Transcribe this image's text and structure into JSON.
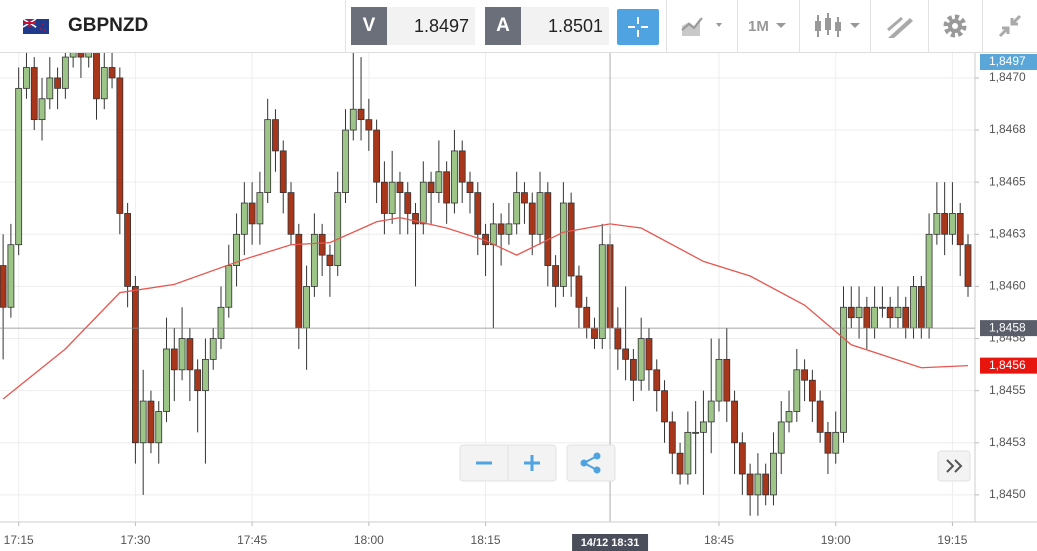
{
  "toolbar": {
    "symbol": "GBPNZD",
    "bid": {
      "label": "V",
      "price": "1.8497"
    },
    "ask": {
      "label": "A",
      "price": "1.8501"
    },
    "timeframe": "1M"
  },
  "chart_data": {
    "type": "candlestick",
    "grid": true,
    "up_color": "#9cc587",
    "down_color": "#a8361b",
    "line_color": "#e8564f",
    "xlim": [
      1032.6,
      1157.9
    ],
    "ylim": [
      1.84487,
      1.84711
    ],
    "xticks": [
      {
        "value": 1035,
        "label": "17:15"
      },
      {
        "value": 1050,
        "label": "17:30"
      },
      {
        "value": 1065,
        "label": "17:45"
      },
      {
        "value": 1080,
        "label": "18:00"
      },
      {
        "value": 1095,
        "label": "18:15"
      },
      {
        "value": 1125,
        "label": "18:45"
      },
      {
        "value": 1140,
        "label": "19:00"
      },
      {
        "value": 1155,
        "label": "19:15"
      }
    ],
    "yticks": [
      {
        "value": 1.845,
        "label": "1,8450"
      },
      {
        "value": 1.84525,
        "label": "1,8453"
      },
      {
        "value": 1.8455,
        "label": "1,8455"
      },
      {
        "value": 1.84575,
        "label": "1,8458"
      },
      {
        "value": 1.846,
        "label": "1,8460"
      },
      {
        "value": 1.84625,
        "label": "1,8463"
      },
      {
        "value": 1.8465,
        "label": "1,8465"
      },
      {
        "value": 1.84675,
        "label": "1,8468"
      },
      {
        "value": 1.847,
        "label": "1,8470"
      }
    ],
    "top_tag": "1,8497",
    "ma_tag": {
      "value": 1.84562,
      "label": "1,8456"
    },
    "crosshair": {
      "x": 1111,
      "x_label": "14/12 18:31",
      "price": {
        "value": 1.8458,
        "label": "1,8458"
      }
    },
    "x": [
      1033,
      1034,
      1035,
      1036,
      1037,
      1038,
      1039,
      1040,
      1041,
      1042,
      1043,
      1044,
      1045,
      1046,
      1047,
      1048,
      1049,
      1050,
      1051,
      1052,
      1053,
      1054,
      1055,
      1056,
      1057,
      1058,
      1059,
      1060,
      1061,
      1062,
      1063,
      1064,
      1065,
      1066,
      1067,
      1068,
      1069,
      1070,
      1071,
      1072,
      1073,
      1074,
      1075,
      1076,
      1077,
      1078,
      1079,
      1080,
      1081,
      1082,
      1083,
      1084,
      1085,
      1086,
      1087,
      1088,
      1089,
      1090,
      1091,
      1092,
      1093,
      1094,
      1095,
      1096,
      1097,
      1098,
      1099,
      1100,
      1101,
      1102,
      1103,
      1104,
      1105,
      1106,
      1107,
      1108,
      1109,
      1110,
      1111,
      1112,
      1113,
      1114,
      1115,
      1116,
      1117,
      1118,
      1119,
      1120,
      1121,
      1122,
      1123,
      1124,
      1125,
      1126,
      1127,
      1128,
      1129,
      1130,
      1131,
      1132,
      1133,
      1134,
      1135,
      1136,
      1137,
      1138,
      1139,
      1140,
      1141,
      1142,
      1143,
      1144,
      1145,
      1146,
      1147,
      1148,
      1149,
      1150,
      1151,
      1152,
      1153,
      1154,
      1155,
      1156,
      1157
    ],
    "ohlc": [
      [
        1.8461,
        1.84625,
        1.84565,
        1.8459
      ],
      [
        1.8459,
        1.8463,
        1.84585,
        1.8462
      ],
      [
        1.8462,
        1.84705,
        1.84615,
        1.84695
      ],
      [
        1.84695,
        1.8472,
        1.8469,
        1.84705
      ],
      [
        1.84705,
        1.8471,
        1.84675,
        1.8468
      ],
      [
        1.8468,
        1.847,
        1.8467,
        1.8469
      ],
      [
        1.8469,
        1.8471,
        1.84685,
        1.847
      ],
      [
        1.847,
        1.84705,
        1.84685,
        1.84695
      ],
      [
        1.84695,
        1.8472,
        1.8469,
        1.8471
      ],
      [
        1.8471,
        1.8473,
        1.84705,
        1.8472
      ],
      [
        1.8472,
        1.84725,
        1.847,
        1.8471
      ],
      [
        1.8471,
        1.8473,
        1.84705,
        1.84715
      ],
      [
        1.84715,
        1.8472,
        1.8468,
        1.8469
      ],
      [
        1.8469,
        1.84715,
        1.84685,
        1.84705
      ],
      [
        1.84705,
        1.84715,
        1.84695,
        1.847
      ],
      [
        1.847,
        1.84705,
        1.84625,
        1.84635
      ],
      [
        1.84635,
        1.8464,
        1.8459,
        1.846
      ],
      [
        1.846,
        1.84605,
        1.84515,
        1.84525
      ],
      [
        1.84525,
        1.8456,
        1.845,
        1.84545
      ],
      [
        1.84545,
        1.8455,
        1.8452,
        1.84525
      ],
      [
        1.84525,
        1.84545,
        1.84515,
        1.8454
      ],
      [
        1.8454,
        1.84585,
        1.84535,
        1.8457
      ],
      [
        1.8457,
        1.8458,
        1.84545,
        1.8456
      ],
      [
        1.8456,
        1.8459,
        1.84555,
        1.84575
      ],
      [
        1.84575,
        1.8458,
        1.84545,
        1.8456
      ],
      [
        1.8456,
        1.84565,
        1.8453,
        1.8455
      ],
      [
        1.8455,
        1.84575,
        1.84515,
        1.84565
      ],
      [
        1.84565,
        1.8458,
        1.8456,
        1.84575
      ],
      [
        1.84575,
        1.846,
        1.8457,
        1.8459
      ],
      [
        1.8459,
        1.8462,
        1.84585,
        1.8461
      ],
      [
        1.8461,
        1.84635,
        1.846,
        1.84625
      ],
      [
        1.84625,
        1.8465,
        1.84615,
        1.8464
      ],
      [
        1.8464,
        1.8465,
        1.8462,
        1.8463
      ],
      [
        1.8463,
        1.84655,
        1.8462,
        1.84645
      ],
      [
        1.84645,
        1.8469,
        1.8464,
        1.8468
      ],
      [
        1.8468,
        1.84685,
        1.84655,
        1.84665
      ],
      [
        1.84665,
        1.8467,
        1.84635,
        1.84645
      ],
      [
        1.84645,
        1.8465,
        1.8462,
        1.84625
      ],
      [
        1.84625,
        1.8463,
        1.8457,
        1.8458
      ],
      [
        1.8458,
        1.8461,
        1.8456,
        1.846
      ],
      [
        1.846,
        1.84635,
        1.84595,
        1.84625
      ],
      [
        1.84625,
        1.8463,
        1.84605,
        1.84615
      ],
      [
        1.84615,
        1.8462,
        1.84595,
        1.8461
      ],
      [
        1.8461,
        1.84655,
        1.84605,
        1.84645
      ],
      [
        1.84645,
        1.84685,
        1.8464,
        1.84675
      ],
      [
        1.84675,
        1.84715,
        1.8467,
        1.84685
      ],
      [
        1.84685,
        1.8471,
        1.8467,
        1.8468
      ],
      [
        1.8468,
        1.8469,
        1.84665,
        1.84675
      ],
      [
        1.84675,
        1.8468,
        1.8464,
        1.8465
      ],
      [
        1.8465,
        1.8466,
        1.84625,
        1.84635
      ],
      [
        1.84635,
        1.84665,
        1.8463,
        1.8465
      ],
      [
        1.8465,
        1.84655,
        1.84625,
        1.84645
      ],
      [
        1.84645,
        1.8465,
        1.84625,
        1.84635
      ],
      [
        1.84635,
        1.8464,
        1.846,
        1.8463
      ],
      [
        1.8463,
        1.8466,
        1.84625,
        1.8465
      ],
      [
        1.8465,
        1.84655,
        1.8463,
        1.84645
      ],
      [
        1.84645,
        1.8467,
        1.8464,
        1.84655
      ],
      [
        1.84655,
        1.8466,
        1.8463,
        1.8464
      ],
      [
        1.8464,
        1.84675,
        1.84635,
        1.84665
      ],
      [
        1.84665,
        1.8467,
        1.8464,
        1.8465
      ],
      [
        1.8465,
        1.84655,
        1.84635,
        1.84645
      ],
      [
        1.84645,
        1.8465,
        1.84615,
        1.84625
      ],
      [
        1.84625,
        1.8463,
        1.84605,
        1.8462
      ],
      [
        1.8462,
        1.8464,
        1.8458,
        1.8463
      ],
      [
        1.8463,
        1.84635,
        1.8461,
        1.84625
      ],
      [
        1.84625,
        1.8464,
        1.8462,
        1.8463
      ],
      [
        1.8463,
        1.84655,
        1.84625,
        1.84645
      ],
      [
        1.84645,
        1.8465,
        1.8463,
        1.8464
      ],
      [
        1.8464,
        1.84645,
        1.84615,
        1.84625
      ],
      [
        1.84625,
        1.84655,
        1.8462,
        1.84645
      ],
      [
        1.84645,
        1.8465,
        1.846,
        1.8461
      ],
      [
        1.8461,
        1.84615,
        1.8459,
        1.846
      ],
      [
        1.846,
        1.8465,
        1.84595,
        1.8464
      ],
      [
        1.8464,
        1.84645,
        1.84595,
        1.84605
      ],
      [
        1.84605,
        1.8461,
        1.8458,
        1.8459
      ],
      [
        1.8459,
        1.84595,
        1.84575,
        1.8458
      ],
      [
        1.8458,
        1.84585,
        1.8457,
        1.84575
      ],
      [
        1.84575,
        1.8463,
        1.8457,
        1.8462
      ],
      [
        1.8462,
        1.84625,
        1.8457,
        1.8458
      ],
      [
        1.8458,
        1.8459,
        1.8456,
        1.8457
      ],
      [
        1.8457,
        1.846,
        1.84555,
        1.84565
      ],
      [
        1.84565,
        1.8457,
        1.84545,
        1.84555
      ],
      [
        1.84555,
        1.84585,
        1.8455,
        1.84575
      ],
      [
        1.84575,
        1.8458,
        1.8455,
        1.8456
      ],
      [
        1.8456,
        1.84565,
        1.8454,
        1.8455
      ],
      [
        1.8455,
        1.84555,
        1.84525,
        1.84535
      ],
      [
        1.84535,
        1.8454,
        1.8451,
        1.8452
      ],
      [
        1.8452,
        1.84525,
        1.84505,
        1.8451
      ],
      [
        1.8451,
        1.8454,
        1.84505,
        1.8453
      ],
      [
        1.8453,
        1.84545,
        1.8451,
        1.8453
      ],
      [
        1.8453,
        1.8455,
        1.845,
        1.84535
      ],
      [
        1.84535,
        1.84575,
        1.8452,
        1.84545
      ],
      [
        1.84545,
        1.84575,
        1.8454,
        1.84565
      ],
      [
        1.84565,
        1.8458,
        1.84535,
        1.84545
      ],
      [
        1.84545,
        1.8455,
        1.8451,
        1.84525
      ],
      [
        1.84525,
        1.8453,
        1.845,
        1.8451
      ],
      [
        1.8451,
        1.84515,
        1.8449,
        1.845
      ],
      [
        1.845,
        1.8452,
        1.8449,
        1.8451
      ],
      [
        1.8451,
        1.84515,
        1.84495,
        1.845
      ],
      [
        1.845,
        1.8453,
        1.84495,
        1.8452
      ],
      [
        1.8452,
        1.84545,
        1.8451,
        1.84535
      ],
      [
        1.84535,
        1.8455,
        1.8453,
        1.8454
      ],
      [
        1.8454,
        1.8457,
        1.84535,
        1.8456
      ],
      [
        1.8456,
        1.84565,
        1.84545,
        1.84555
      ],
      [
        1.84555,
        1.8456,
        1.84535,
        1.84545
      ],
      [
        1.84545,
        1.8455,
        1.84525,
        1.8453
      ],
      [
        1.8453,
        1.84535,
        1.8451,
        1.8452
      ],
      [
        1.8452,
        1.8454,
        1.84515,
        1.8453
      ],
      [
        1.8453,
        1.846,
        1.84525,
        1.8459
      ],
      [
        1.8459,
        1.846,
        1.8458,
        1.84585
      ],
      [
        1.84585,
        1.846,
        1.84575,
        1.8459
      ],
      [
        1.8459,
        1.84595,
        1.8457,
        1.8458
      ],
      [
        1.8458,
        1.846,
        1.84575,
        1.8459
      ],
      [
        1.8459,
        1.846,
        1.84585,
        1.8459
      ],
      [
        1.8459,
        1.84595,
        1.8458,
        1.84585
      ],
      [
        1.84585,
        1.846,
        1.8458,
        1.8459
      ],
      [
        1.8459,
        1.84595,
        1.84575,
        1.8458
      ],
      [
        1.8458,
        1.84605,
        1.84575,
        1.846
      ],
      [
        1.846,
        1.84605,
        1.84575,
        1.8458
      ],
      [
        1.8458,
        1.84635,
        1.84575,
        1.84625
      ],
      [
        1.84625,
        1.8465,
        1.8462,
        1.84635
      ],
      [
        1.84635,
        1.8465,
        1.84615,
        1.84625
      ],
      [
        1.84625,
        1.8465,
        1.8462,
        1.84635
      ],
      [
        1.84635,
        1.8464,
        1.84605,
        1.8462
      ],
      [
        1.8462,
        1.84625,
        1.84595,
        1.846
      ]
    ],
    "ma": {
      "x": [
        1033,
        1041,
        1048,
        1055,
        1064,
        1070,
        1075,
        1081,
        1084,
        1090,
        1095,
        1099,
        1105,
        1111,
        1115,
        1123,
        1129,
        1136,
        1142,
        1151,
        1157
      ],
      "values": [
        1.84546,
        1.8457,
        1.84597,
        1.84601,
        1.84613,
        1.8462,
        1.84621,
        1.84631,
        1.84633,
        1.84628,
        1.84622,
        1.84615,
        1.84626,
        1.8463,
        1.84628,
        1.84612,
        1.84605,
        1.84591,
        1.84572,
        1.84561,
        1.84562
      ]
    }
  }
}
